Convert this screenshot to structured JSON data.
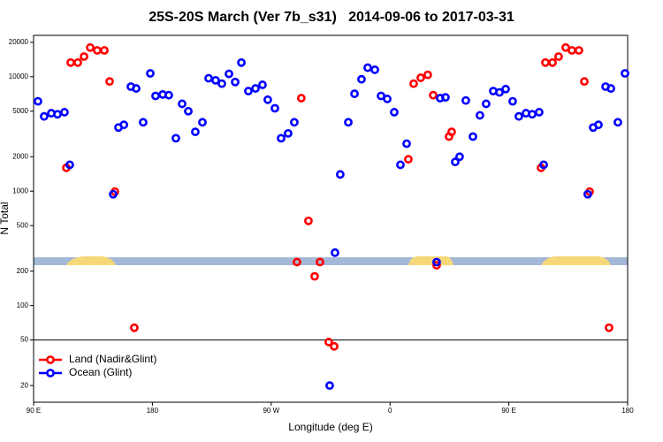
{
  "chart_data": {
    "type": "scatter",
    "title": "25S-20S March (Ver 7b_s31)   2014-09-06 to 2017-03-31",
    "x_label": "Longitude (deg E)",
    "y_label": "N Total",
    "yscale": "log",
    "xlim": [
      90,
      540
    ],
    "ylim": [
      14.3,
      23000
    ],
    "xticks": [
      {
        "value": 90,
        "label": "90 E"
      },
      180,
      {
        "value": 270,
        "label": "90 W"
      },
      {
        "value": 360,
        "label": "0"
      },
      {
        "value": 450,
        "label": "90 E"
      },
      {
        "value": 540,
        "label": "180"
      }
    ],
    "yticks": [
      20,
      50,
      100,
      200,
      500,
      1000,
      2000,
      5000,
      10000,
      20000
    ],
    "hlines": [
      50
    ],
    "legend": "lower left",
    "series": [
      {
        "name": "Land (Nadir&Glint)",
        "color": "#ff0000",
        "x": [
          114.8,
          118.1,
          123.5,
          128.2,
          132.9,
          138.2,
          143.6,
          147.6,
          151.6,
          166.3,
          289.5,
          292.8,
          298.2,
          302.9,
          306.9,
          313.6,
          317.7,
          373.9,
          377.9,
          383.3,
          388.6,
          392.7,
          395.3,
          404.7,
          406.7,
          474.4,
          477.7,
          483.1,
          487.7,
          493.1,
          497.8,
          503.1,
          507.2,
          511.2,
          525.9
        ],
        "values": [
          1600,
          13300,
          13300,
          15000,
          18000,
          17000,
          17000,
          9100,
          990,
          64,
          240,
          6500,
          550,
          180,
          240,
          48,
          44,
          1900,
          8700,
          9800,
          10400,
          6900,
          225,
          3000,
          3300,
          1600,
          13300,
          13300,
          15000,
          18000,
          17000,
          17000,
          9100,
          990,
          64
        ]
      },
      {
        "name": "Ocean (Glint)",
        "color": "#0000ff",
        "x": [
          93.3,
          98,
          103.4,
          108.1,
          113.4,
          117.4,
          150.3,
          154.3,
          158.4,
          163.7,
          167.7,
          173.0,
          178.4,
          182.4,
          187.8,
          192.4,
          197.8,
          202.5,
          207.2,
          212.5,
          217.9,
          222.6,
          227.9,
          232.6,
          238.0,
          242.7,
          247.4,
          252.7,
          258.1,
          263.4,
          267.4,
          272.8,
          277.5,
          282.8,
          287.5,
          314.3,
          318.3,
          322.3,
          328.4,
          333.1,
          338.4,
          343.1,
          348.5,
          353.2,
          357.9,
          363.2,
          367.9,
          372.6,
          395.3,
          398.0,
          402.0,
          409.4,
          412.7,
          417.4,
          422.8,
          428.1,
          432.8,
          438.2,
          442.9,
          447.6,
          452.9,
          457.6,
          463.0,
          467.7,
          473.0,
          476.4,
          509.8,
          513.9,
          517.9,
          523.3,
          527.3,
          532.6,
          538.0
        ],
        "values": [
          6100,
          4500,
          4800,
          4700,
          4900,
          1700,
          940,
          3600,
          3800,
          8200,
          7900,
          4000,
          10700,
          6800,
          7000,
          6900,
          2900,
          5800,
          5000,
          3300,
          4000,
          9700,
          9300,
          8700,
          10600,
          9000,
          13300,
          7500,
          7900,
          8500,
          6300,
          5300,
          2900,
          3200,
          4000,
          20,
          290,
          1400,
          4000,
          7100,
          9500,
          12000,
          11500,
          6800,
          6400,
          4900,
          1700,
          2600,
          240,
          6500,
          6600,
          1800,
          2000,
          6200,
          3000,
          4600,
          5800,
          7500,
          7300,
          7800,
          6100,
          4500,
          4800,
          4700,
          4900,
          1700,
          940,
          3600,
          3800,
          8200,
          7900,
          4000,
          10700
        ]
      }
    ]
  }
}
